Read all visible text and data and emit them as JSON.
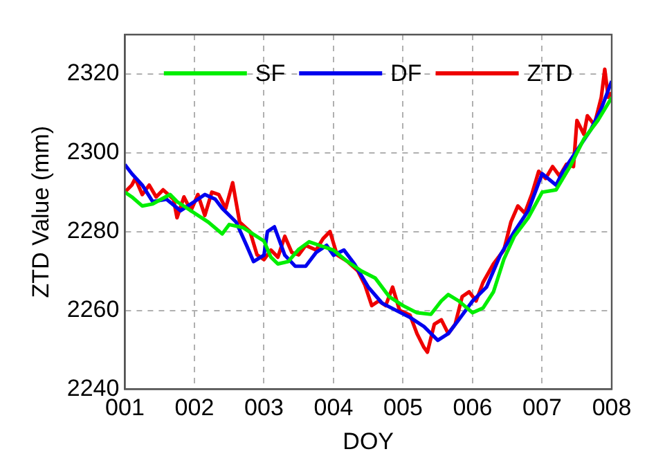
{
  "chart_data": {
    "type": "line",
    "xlabel": "DOY",
    "ylabel": "ZTD Value (mm)",
    "xlim": [
      1,
      8
    ],
    "xticks": [
      {
        "value": 1,
        "label": "001"
      },
      {
        "value": 2,
        "label": "002"
      },
      {
        "value": 3,
        "label": "003"
      },
      {
        "value": 4,
        "label": "004"
      },
      {
        "value": 5,
        "label": "005"
      },
      {
        "value": 6,
        "label": "006"
      },
      {
        "value": 7,
        "label": "007"
      },
      {
        "value": 8,
        "label": "008"
      }
    ],
    "ylim": [
      2240,
      2330
    ],
    "yticks": [
      2240,
      2260,
      2280,
      2300,
      2320
    ],
    "grid": true,
    "legend": "top",
    "marker": "none",
    "line_style": "solid",
    "series": [
      {
        "name": "SF",
        "color": "#00ee00",
        "x": [
          1,
          1.1,
          1.25,
          1.4,
          1.5,
          1.65,
          1.75,
          2,
          2.2,
          2.4,
          2.5,
          2.7,
          3,
          3.1,
          3.2,
          3.35,
          3.5,
          3.65,
          3.8,
          4,
          4.2,
          4.4,
          4.6,
          4.8,
          5,
          5.2,
          5.4,
          5.55,
          5.65,
          5.8,
          6,
          6.15,
          6.3,
          6.45,
          6.6,
          6.8,
          7,
          7.2,
          7.4,
          7.6,
          7.8,
          8
        ],
        "values": [
          2290,
          2288.8,
          2286.5,
          2287,
          2288,
          2289.4,
          2287.6,
          2284.7,
          2282.4,
          2279.4,
          2281.8,
          2281,
          2277.6,
          2273.5,
          2271.8,
          2272.4,
          2275.5,
          2277.4,
          2276.5,
          2275.3,
          2272.4,
          2270,
          2268.2,
          2263.5,
          2261.2,
          2259.4,
          2259,
          2262.4,
          2264,
          2262.4,
          2259.4,
          2260.6,
          2264.7,
          2273,
          2278.8,
          2283.5,
          2290,
          2290.6,
          2296.5,
          2303.5,
          2308.2,
          2314
        ]
      },
      {
        "name": "DF",
        "color": "#0000ee",
        "x": [
          1,
          1.1,
          1.25,
          1.4,
          1.6,
          1.8,
          2,
          2.15,
          2.3,
          2.4,
          2.6,
          2.75,
          2.85,
          3,
          3.05,
          3.15,
          3.3,
          3.45,
          3.6,
          3.75,
          3.9,
          4,
          4.15,
          4.3,
          4.5,
          4.7,
          4.9,
          5.1,
          5.3,
          5.5,
          5.65,
          5.8,
          6,
          6.2,
          6.4,
          6.6,
          6.8,
          7,
          7.2,
          7.3,
          7.5,
          7.7,
          7.85,
          8
        ],
        "values": [
          2297,
          2294.7,
          2291.8,
          2287.6,
          2288.2,
          2285.3,
          2287.6,
          2289.4,
          2288.2,
          2285.9,
          2282.4,
          2276.5,
          2272.4,
          2274,
          2280,
          2281.2,
          2274,
          2271.2,
          2271.2,
          2274.7,
          2276.5,
          2274,
          2275.3,
          2271.8,
          2265.9,
          2261.8,
          2260,
          2258.2,
          2255.9,
          2252.4,
          2254.1,
          2257.6,
          2262.4,
          2265.9,
          2274.1,
          2280,
          2285.3,
          2294.7,
          2291.8,
          2295.3,
          2300.6,
          2305.9,
          2311.2,
          2318.2
        ]
      },
      {
        "name": "ZTD",
        "color": "#ee0000",
        "x": [
          1,
          1.1,
          1.15,
          1.25,
          1.35,
          1.45,
          1.55,
          1.7,
          1.75,
          1.85,
          1.95,
          2.05,
          2.15,
          2.25,
          2.35,
          2.45,
          2.55,
          2.65,
          2.8,
          2.9,
          3,
          3.1,
          3.2,
          3.3,
          3.4,
          3.5,
          3.6,
          3.75,
          3.85,
          3.95,
          4.05,
          4.2,
          4.35,
          4.45,
          4.55,
          4.65,
          4.75,
          4.85,
          4.95,
          5.1,
          5.2,
          5.3,
          5.35,
          5.45,
          5.55,
          5.65,
          5.75,
          5.85,
          5.95,
          6.05,
          6.15,
          6.3,
          6.45,
          6.55,
          6.65,
          6.75,
          6.85,
          6.95,
          7.05,
          7.15,
          7.25,
          7.35,
          7.45,
          7.5,
          7.6,
          7.65,
          7.75,
          7.85,
          7.9,
          7.95,
          8
        ],
        "values": [
          2290,
          2291.8,
          2293.5,
          2289.4,
          2291.8,
          2288.8,
          2290.6,
          2288.2,
          2283.5,
          2288.8,
          2285.3,
          2289.4,
          2284.1,
          2290,
          2289.4,
          2285.9,
          2292.4,
          2282.4,
          2280,
          2274.1,
          2272.9,
          2275.3,
          2273.5,
          2278.8,
          2274.7,
          2274.1,
          2276.5,
          2275.3,
          2278.2,
          2280,
          2274.1,
          2272.4,
          2270,
          2266.5,
          2261.2,
          2262.4,
          2261.2,
          2265.9,
          2260,
          2258.8,
          2254.1,
          2250.6,
          2249.4,
          2256.5,
          2257.6,
          2254.1,
          2256.5,
          2263.5,
          2264.7,
          2262.4,
          2267.1,
          2271.8,
          2275.3,
          2282.4,
          2286.5,
          2284.7,
          2289.4,
          2295.3,
          2293.5,
          2296.5,
          2294.1,
          2297.1,
          2296.5,
          2308.2,
          2304.7,
          2309.4,
          2307.1,
          2314.1,
          2321.2,
          2314.1,
          2315.3
        ]
      }
    ]
  }
}
